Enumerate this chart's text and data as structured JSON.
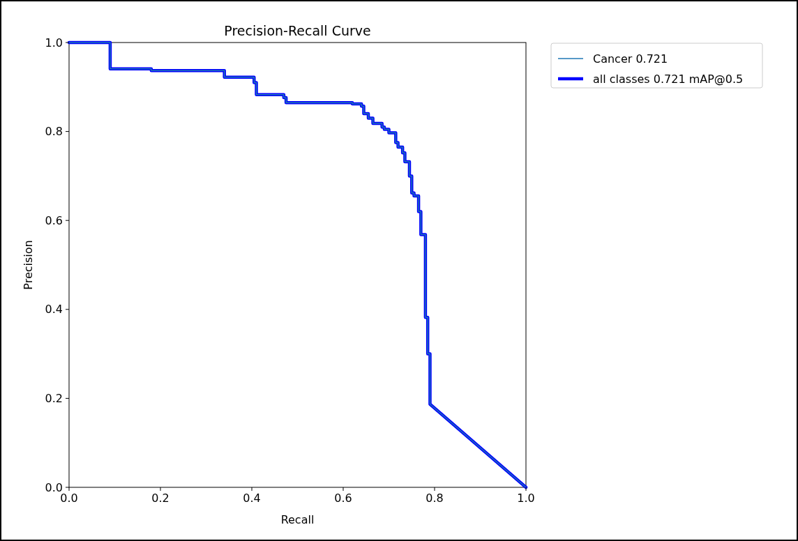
{
  "chart_data": {
    "type": "line",
    "title": "Precision-Recall Curve",
    "xlabel": "Recall",
    "ylabel": "Precision",
    "x": [
      0,
      0.09,
      0.09,
      0.18,
      0.18,
      0.34,
      0.34,
      0.405,
      0.405,
      0.41,
      0.41,
      0.47,
      0.47,
      0.475,
      0.475,
      0.62,
      0.62,
      0.64,
      0.64,
      0.645,
      0.645,
      0.655,
      0.655,
      0.665,
      0.665,
      0.685,
      0.685,
      0.69,
      0.69,
      0.7,
      0.7,
      0.715,
      0.715,
      0.72,
      0.72,
      0.73,
      0.73,
      0.735,
      0.735,
      0.745,
      0.745,
      0.75,
      0.75,
      0.755,
      0.755,
      0.765,
      0.765,
      0.77,
      0.77,
      0.78,
      0.78,
      0.785,
      0.785,
      0.79,
      0.79,
      1.0
    ],
    "series": [
      {
        "name": "Cancer 0.721",
        "color": "#1f77b4",
        "values": [
          1,
          1,
          0.941,
          0.941,
          0.937,
          0.937,
          0.922,
          0.922,
          0.91,
          0.91,
          0.883,
          0.883,
          0.876,
          0.876,
          0.865,
          0.865,
          0.862,
          0.862,
          0.857,
          0.857,
          0.84,
          0.84,
          0.83,
          0.83,
          0.818,
          0.818,
          0.81,
          0.81,
          0.805,
          0.805,
          0.797,
          0.797,
          0.775,
          0.775,
          0.765,
          0.765,
          0.752,
          0.752,
          0.732,
          0.732,
          0.7,
          0.7,
          0.662,
          0.662,
          0.655,
          0.655,
          0.62,
          0.62,
          0.568,
          0.568,
          0.382,
          0.382,
          0.3,
          0.3,
          0.187,
          0
        ]
      },
      {
        "name": "all classes 0.721 mAP@0.5",
        "color": "#0000ff",
        "values": [
          1,
          1,
          0.941,
          0.941,
          0.937,
          0.937,
          0.922,
          0.922,
          0.91,
          0.91,
          0.883,
          0.883,
          0.876,
          0.876,
          0.865,
          0.865,
          0.862,
          0.862,
          0.857,
          0.857,
          0.84,
          0.84,
          0.83,
          0.83,
          0.818,
          0.818,
          0.81,
          0.81,
          0.805,
          0.805,
          0.797,
          0.797,
          0.775,
          0.775,
          0.765,
          0.765,
          0.752,
          0.752,
          0.732,
          0.732,
          0.7,
          0.7,
          0.662,
          0.662,
          0.655,
          0.655,
          0.62,
          0.62,
          0.568,
          0.568,
          0.382,
          0.382,
          0.3,
          0.3,
          0.187,
          0
        ]
      }
    ],
    "xlim": [
      0,
      1
    ],
    "ylim": [
      0,
      1
    ],
    "xticks": [
      {
        "value": 0,
        "label": "0.0"
      },
      0.2,
      0.4,
      0.6,
      0.8,
      {
        "value": 1,
        "label": "1.0"
      }
    ],
    "yticks": [
      {
        "value": 0,
        "label": "0.0"
      },
      0.2,
      0.4,
      0.6,
      0.8,
      {
        "value": 1,
        "label": "1.0"
      }
    ],
    "legend": "top right",
    "grid": false
  }
}
